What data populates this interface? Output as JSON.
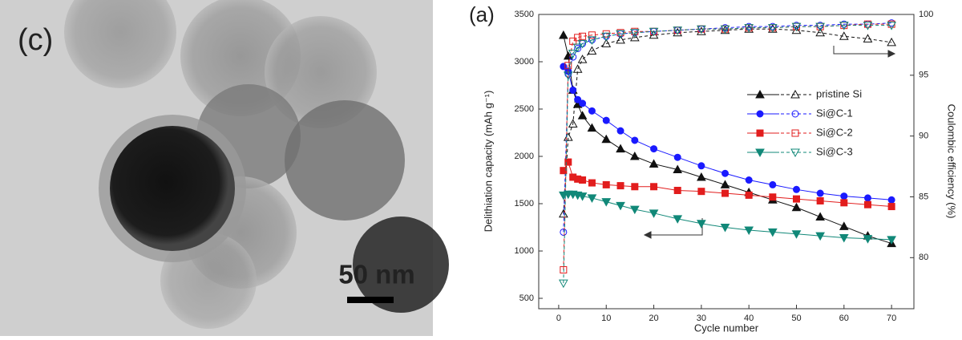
{
  "image_panel": {
    "label": "(c)",
    "scale_bar": "50 nm"
  },
  "chart_data": {
    "type": "line",
    "panel_label": "(a)",
    "x_label": "Cycle number",
    "y_label": "Delithiation capacity (mAh g⁻¹)",
    "y2_label": "Coulombic efficiency (%)",
    "x": [
      1,
      2,
      3,
      4,
      5,
      7,
      10,
      13,
      16,
      20,
      25,
      30,
      35,
      40,
      45,
      50,
      55,
      60,
      65,
      70
    ],
    "xlim": [
      -4.2,
      74.7
    ],
    "xticks": [
      0,
      10,
      20,
      30,
      40,
      50,
      60,
      70
    ],
    "ylim": [
      390,
      3500
    ],
    "yticks": [
      500,
      1000,
      1500,
      2000,
      2500,
      3000,
      3500
    ],
    "y2lim": [
      75.8,
      100
    ],
    "y2ticks": [
      80,
      85,
      90,
      95,
      100
    ],
    "series": [
      {
        "name": "pristine Si",
        "color": "#111111",
        "marker": "triangle-up",
        "values": [
          3280,
          3060,
          2700,
          2550,
          2430,
          2300,
          2180,
          2080,
          2000,
          1920,
          1860,
          1780,
          1700,
          1620,
          1540,
          1460,
          1360,
          1260,
          1160,
          1080
        ],
        "ce_values": [
          83.6,
          89.9,
          91.0,
          95.5,
          96.3,
          97.0,
          97.6,
          97.9,
          98.1,
          98.3,
          98.5,
          98.6,
          98.7,
          98.8,
          98.8,
          98.7,
          98.5,
          98.2,
          98.0,
          97.7
        ],
        "ce_axis": "y2"
      },
      {
        "name": "Si@C-1",
        "color": "#1a1aff",
        "marker": "circle",
        "values": [
          2950,
          2900,
          2700,
          2600,
          2560,
          2480,
          2380,
          2270,
          2170,
          2080,
          1990,
          1900,
          1820,
          1750,
          1700,
          1650,
          1610,
          1580,
          1560,
          1540
        ],
        "ce_values": [
          82.1,
          95.1,
          96.5,
          97.2,
          97.6,
          97.9,
          98.2,
          98.4,
          98.5,
          98.6,
          98.7,
          98.8,
          98.9,
          99.0,
          99.0,
          99.1,
          99.1,
          99.2,
          99.2,
          99.3
        ],
        "ce_axis": "y2"
      },
      {
        "name": "Si@C-2",
        "color": "#e21d1d",
        "marker": "square",
        "values": [
          1850,
          1940,
          1780,
          1760,
          1750,
          1720,
          1700,
          1690,
          1680,
          1680,
          1640,
          1630,
          1610,
          1590,
          1570,
          1550,
          1530,
          1510,
          1490,
          1470
        ],
        "ce_values": [
          79.0,
          95.8,
          97.8,
          98.1,
          98.2,
          98.3,
          98.4,
          98.5,
          98.6,
          98.6,
          98.7,
          98.8,
          98.8,
          98.9,
          98.9,
          99.0,
          99.0,
          99.1,
          99.2,
          99.2
        ],
        "ce_axis": "y2"
      },
      {
        "name": "Si@C-3",
        "color": "#118878",
        "marker": "triangle-down",
        "values": [
          1590,
          1600,
          1600,
          1590,
          1580,
          1560,
          1520,
          1480,
          1440,
          1400,
          1340,
          1290,
          1250,
          1220,
          1200,
          1180,
          1160,
          1140,
          1130,
          1120
        ],
        "ce_values": [
          77.9,
          95.0,
          96.8,
          97.3,
          97.6,
          97.9,
          98.2,
          98.4,
          98.5,
          98.6,
          98.7,
          98.8,
          98.8,
          98.9,
          98.9,
          99.0,
          99.0,
          99.1,
          99.1,
          99.1
        ],
        "ce_axis": "y2"
      }
    ]
  }
}
